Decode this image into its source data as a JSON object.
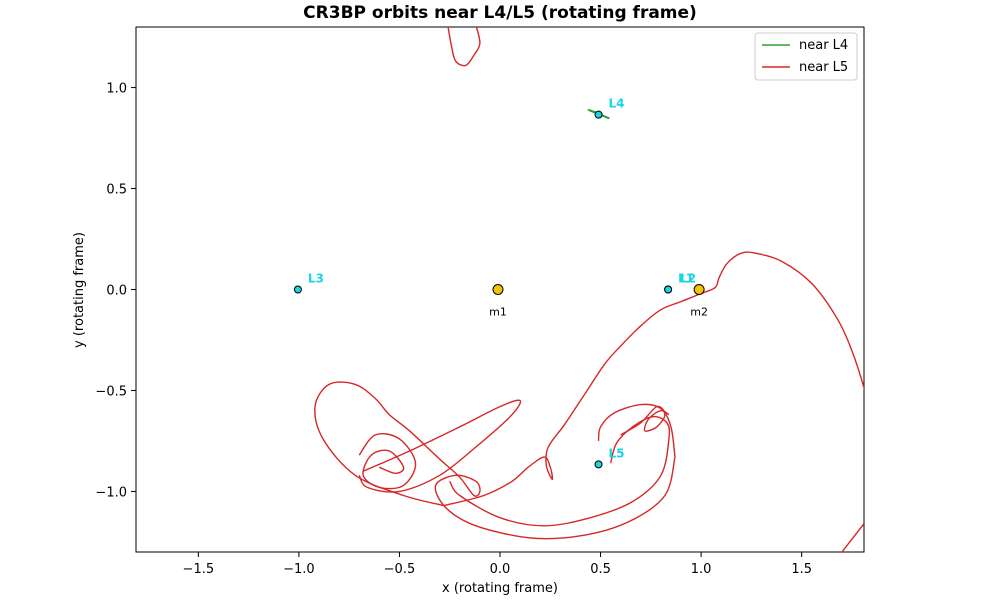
{
  "chart_data": {
    "type": "line",
    "title": "CR3BP orbits near L4/L5 (rotating frame)",
    "xlabel": "x (rotating frame)",
    "ylabel": "y (rotating frame)",
    "xlim": [
      -1.81,
      1.81
    ],
    "ylim": [
      -1.3,
      1.3
    ],
    "x_ticks": [
      -1.5,
      -1.0,
      -0.5,
      0.0,
      0.5,
      1.0,
      1.5
    ],
    "x_tick_labels": [
      "−1.5",
      "−1.0",
      "−0.5",
      "0.0",
      "0.5",
      "1.0",
      "1.5"
    ],
    "y_ticks": [
      1.0,
      0.5,
      0.0,
      -0.5,
      -1.0
    ],
    "y_tick_labels": [
      "1.0",
      "0.5",
      "0.0",
      "−0.5",
      "−1.0"
    ],
    "grid": false,
    "legend_position": "top-right",
    "series": [
      {
        "name": "near L4",
        "color": "#2ca02c",
        "points": [
          [
            0.44,
            0.89
          ],
          [
            0.47,
            0.88
          ],
          [
            0.5,
            0.868
          ],
          [
            0.53,
            0.852
          ],
          [
            0.54,
            0.848
          ],
          [
            0.52,
            0.856
          ],
          [
            0.49,
            0.868
          ],
          [
            0.46,
            0.88
          ],
          [
            0.44,
            0.89
          ],
          [
            0.45,
            0.886
          ],
          [
            0.48,
            0.873
          ],
          [
            0.51,
            0.862
          ],
          [
            0.54,
            0.85
          ],
          [
            0.53,
            0.854
          ],
          [
            0.5,
            0.866
          ],
          [
            0.47,
            0.878
          ],
          [
            0.44,
            0.89
          ]
        ]
      },
      {
        "name": "near L5",
        "color": "#d62728",
        "points": [
          [
            -0.26,
            1.31
          ],
          [
            -0.24,
            1.2
          ],
          [
            -0.22,
            1.13
          ],
          [
            -0.17,
            1.11
          ],
          [
            -0.13,
            1.16
          ],
          [
            -0.1,
            1.22
          ],
          [
            -0.12,
            1.31
          ],
          [
            0.49,
            -0.75
          ],
          [
            0.5,
            -0.68
          ],
          [
            0.57,
            -0.61
          ],
          [
            0.7,
            -0.57
          ],
          [
            0.8,
            -0.59
          ],
          [
            0.85,
            -0.68
          ],
          [
            0.87,
            -0.83
          ],
          [
            0.82,
            -1.02
          ],
          [
            0.64,
            -1.15
          ],
          [
            0.4,
            -1.22
          ],
          [
            0.15,
            -1.23
          ],
          [
            -0.12,
            -1.17
          ],
          [
            -0.27,
            -1.08
          ],
          [
            -0.32,
            -0.97
          ],
          [
            -0.22,
            -0.92
          ],
          [
            -0.12,
            -0.95
          ],
          [
            -0.1,
            -1.0
          ],
          [
            -0.13,
            -1.02
          ],
          [
            -0.2,
            -0.93
          ],
          [
            -0.3,
            -0.84
          ],
          [
            -0.45,
            -0.7
          ],
          [
            -0.55,
            -0.62
          ],
          [
            -0.62,
            -0.54
          ],
          [
            -0.72,
            -0.47
          ],
          [
            -0.85,
            -0.47
          ],
          [
            -0.92,
            -0.58
          ],
          [
            -0.88,
            -0.74
          ],
          [
            -0.72,
            -0.92
          ],
          [
            -0.48,
            -1.02
          ],
          [
            -0.28,
            -1.07
          ],
          [
            -0.08,
            -1.02
          ],
          [
            0.06,
            -0.95
          ],
          [
            0.14,
            -0.88
          ],
          [
            0.22,
            -0.83
          ],
          [
            0.25,
            -0.88
          ],
          [
            0.26,
            -0.94
          ],
          [
            0.23,
            -0.87
          ],
          [
            0.24,
            -0.78
          ],
          [
            0.32,
            -0.67
          ],
          [
            0.42,
            -0.52
          ],
          [
            0.52,
            -0.37
          ],
          [
            0.6,
            -0.28
          ],
          [
            0.7,
            -0.18
          ],
          [
            0.8,
            -0.1
          ],
          [
            0.9,
            -0.06
          ],
          [
            1.0,
            -0.02
          ],
          [
            1.07,
            0.01
          ],
          [
            1.09,
            0.06
          ],
          [
            1.13,
            0.13
          ],
          [
            1.2,
            0.18
          ],
          [
            1.27,
            0.18
          ],
          [
            1.4,
            0.14
          ],
          [
            1.55,
            0.03
          ],
          [
            1.68,
            -0.15
          ],
          [
            1.76,
            -0.33
          ],
          [
            1.82,
            -0.52
          ]
        ],
        "segments": [
          [
            [
              0.49,
              -0.75
            ],
            [
              0.5,
              -0.68
            ],
            [
              0.57,
              -0.61
            ],
            [
              0.7,
              -0.57
            ],
            [
              0.8,
              -0.59
            ],
            [
              0.85,
              -0.68
            ],
            [
              0.87,
              -0.83
            ]
          ],
          [
            [
              0.87,
              -0.83
            ],
            [
              0.82,
              -1.02
            ],
            [
              0.64,
              -1.15
            ],
            [
              0.4,
              -1.22
            ],
            [
              0.15,
              -1.23
            ],
            [
              -0.12,
              -1.17
            ],
            [
              -0.27,
              -1.08
            ],
            [
              -0.32,
              -0.97
            ],
            [
              -0.22,
              -0.92
            ],
            [
              -0.12,
              -0.95
            ],
            [
              -0.1,
              -1.0
            ],
            [
              -0.13,
              -1.02
            ],
            [
              -0.2,
              -0.93
            ],
            [
              -0.3,
              -0.84
            ],
            [
              -0.45,
              -0.7
            ],
            [
              -0.55,
              -0.62
            ],
            [
              -0.62,
              -0.54
            ],
            [
              -0.72,
              -0.47
            ],
            [
              -0.85,
              -0.47
            ],
            [
              -0.92,
              -0.58
            ],
            [
              -0.88,
              -0.74
            ],
            [
              -0.72,
              -0.92
            ],
            [
              -0.48,
              -1.02
            ],
            [
              -0.28,
              -1.07
            ]
          ],
          [
            [
              -0.28,
              -1.07
            ],
            [
              -0.08,
              -1.02
            ],
            [
              0.06,
              -0.95
            ],
            [
              0.14,
              -0.88
            ],
            [
              0.22,
              -0.83
            ],
            [
              0.25,
              -0.88
            ],
            [
              0.26,
              -0.94
            ],
            [
              0.23,
              -0.87
            ],
            [
              0.24,
              -0.78
            ],
            [
              0.32,
              -0.67
            ],
            [
              0.42,
              -0.52
            ],
            [
              0.52,
              -0.37
            ],
            [
              0.6,
              -0.28
            ],
            [
              0.7,
              -0.18
            ],
            [
              0.8,
              -0.1
            ],
            [
              0.9,
              -0.06
            ],
            [
              1.0,
              -0.02
            ],
            [
              1.07,
              0.01
            ],
            [
              1.09,
              0.06
            ],
            [
              1.13,
              0.13
            ],
            [
              1.2,
              0.18
            ],
            [
              1.27,
              0.18
            ],
            [
              1.4,
              0.14
            ],
            [
              1.55,
              0.03
            ],
            [
              1.68,
              -0.15
            ],
            [
              1.76,
              -0.33
            ],
            [
              1.82,
              -0.52
            ]
          ]
        ]
      }
    ],
    "extra_loops": [
      [
        [
          -0.7,
          -0.82
        ],
        [
          -0.62,
          -0.72
        ],
        [
          -0.5,
          -0.74
        ],
        [
          -0.42,
          -0.86
        ],
        [
          -0.48,
          -0.97
        ],
        [
          -0.6,
          -0.98
        ],
        [
          -0.68,
          -0.92
        ],
        [
          -0.64,
          -0.82
        ],
        [
          -0.55,
          -0.8
        ],
        [
          -0.48,
          -0.88
        ],
        [
          -0.52,
          -0.91
        ],
        [
          -0.6,
          -0.88
        ]
      ],
      [
        [
          -0.68,
          -0.9
        ],
        [
          -0.45,
          -0.8
        ],
        [
          -0.2,
          -0.68
        ],
        [
          0.0,
          -0.58
        ],
        [
          0.1,
          -0.55
        ],
        [
          0.05,
          -0.63
        ],
        [
          -0.12,
          -0.78
        ],
        [
          -0.3,
          -0.92
        ],
        [
          -0.5,
          -1.0
        ],
        [
          -0.66,
          -0.98
        ],
        [
          -0.7,
          -0.92
        ]
      ],
      [
        [
          0.6,
          -0.72
        ],
        [
          0.7,
          -0.66
        ],
        [
          0.78,
          -0.58
        ],
        [
          0.82,
          -0.62
        ],
        [
          0.78,
          -0.68
        ],
        [
          0.72,
          -0.7
        ],
        [
          0.74,
          -0.64
        ],
        [
          0.8,
          -0.6
        ],
        [
          0.84,
          -0.62
        ]
      ],
      [
        [
          0.55,
          -0.86
        ],
        [
          0.58,
          -0.76
        ],
        [
          0.66,
          -0.68
        ],
        [
          0.76,
          -0.63
        ],
        [
          0.83,
          -0.66
        ],
        [
          0.84,
          -0.74
        ],
        [
          0.8,
          -0.92
        ],
        [
          0.66,
          -1.05
        ],
        [
          0.45,
          -1.13
        ],
        [
          0.22,
          -1.17
        ],
        [
          0.0,
          -1.13
        ],
        [
          -0.2,
          -1.02
        ],
        [
          -0.25,
          -0.95
        ]
      ]
    ],
    "bodies": [
      {
        "name": "m1",
        "x": -0.01,
        "y": 0.0,
        "color": "#f5c400"
      },
      {
        "name": "m2",
        "x": 0.99,
        "y": 0.0,
        "color": "#f5c400"
      }
    ],
    "lagrange_points": [
      {
        "name": "L1",
        "x": 0.836,
        "y": 0.0
      },
      {
        "name": "L2",
        "x": 0.836,
        "y": 0.0
      },
      {
        "name": "L3",
        "x": -1.005,
        "y": 0.0
      },
      {
        "name": "L4",
        "x": 0.49,
        "y": 0.866
      },
      {
        "name": "L5",
        "x": 0.49,
        "y": -0.866
      }
    ],
    "lagrange_color": "#17d4e6"
  }
}
